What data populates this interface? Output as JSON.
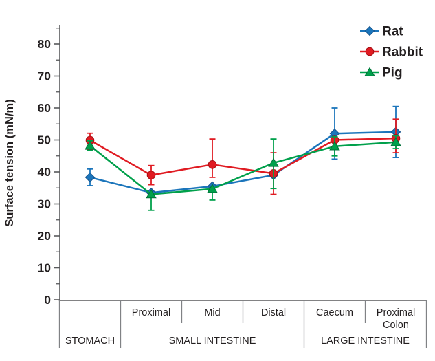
{
  "chart_data": {
    "type": "line",
    "title": "",
    "ylabel": "Surface tension (mN/m)",
    "xlabel": "",
    "ylim": [
      0,
      86
    ],
    "ytick_major": [
      0,
      10,
      20,
      30,
      40,
      50,
      60,
      70,
      80
    ],
    "ytick_minor": [
      5,
      15,
      25,
      35,
      45,
      55,
      65,
      75,
      85
    ],
    "grid": false,
    "legend_position": "top-right",
    "axis_color": "#58595B",
    "divider_color": "#808285",
    "text_color": "#231F20",
    "categories": [
      "Stomach",
      "Proximal",
      "Mid",
      "Distal",
      "Caecum",
      "Proximal Colon"
    ],
    "axis_row1": [
      "",
      "Proximal",
      "Mid",
      "Distal",
      "Caecum",
      "Proximal\nColon"
    ],
    "axis_groups": [
      {
        "label": "STOMACH",
        "span": [
          0,
          0
        ]
      },
      {
        "label": "SMALL INTESTINE",
        "span": [
          1,
          3
        ]
      },
      {
        "label": "LARGE INTESTINE",
        "span": [
          4,
          5
        ]
      }
    ],
    "series": [
      {
        "name": "Rat",
        "color": "#1B75BB",
        "edge_color": "#14518A",
        "marker": "diamond",
        "values": [
          38.3,
          33.5,
          35.5,
          39.0,
          52.0,
          52.5
        ],
        "err_up": [
          2.6,
          0,
          0,
          0,
          8.0,
          8.0
        ],
        "err_down": [
          2.6,
          0,
          0,
          0,
          8.0,
          8.0
        ]
      },
      {
        "name": "Rabbit",
        "color": "#E01B22",
        "edge_color": "#A50F14",
        "marker": "circle",
        "values": [
          49.9,
          39.0,
          42.3,
          39.5,
          50.0,
          50.5
        ],
        "err_up": [
          2.2,
          3.0,
          8.0,
          6.5,
          0,
          6.0
        ],
        "err_down": [
          3.0,
          3.0,
          4.0,
          6.5,
          0,
          4.5
        ]
      },
      {
        "name": "Pig",
        "color": "#00A04B",
        "edge_color": "#007038",
        "marker": "triangle",
        "values": [
          48.2,
          33.0,
          34.7,
          42.8,
          48.0,
          49.3
        ],
        "err_up": [
          1.5,
          0,
          0,
          7.5,
          3.0,
          2.0
        ],
        "err_down": [
          1.5,
          5.0,
          3.5,
          8.0,
          3.0,
          2.0
        ]
      }
    ]
  }
}
